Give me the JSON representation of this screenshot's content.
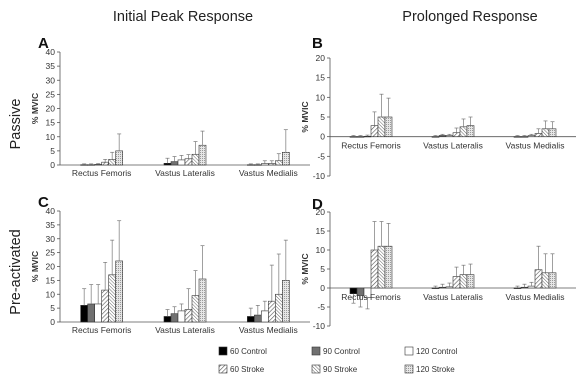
{
  "figure": {
    "col_titles": [
      "Initial Peak Response",
      "Prolonged Response"
    ],
    "row_titles": [
      "Passive",
      "Pre-activated"
    ]
  },
  "legend": [
    {
      "label": "60 Control",
      "series": 0
    },
    {
      "label": "90 Control",
      "series": 1
    },
    {
      "label": "120 Control",
      "series": 2
    },
    {
      "label": "60 Stroke",
      "series": 3
    },
    {
      "label": "90 Stroke",
      "series": 4
    },
    {
      "label": "120 Stroke",
      "series": 5
    }
  ],
  "series_styles": [
    {
      "fill": "#000000",
      "pattern": "solid"
    },
    {
      "fill": "#707070",
      "pattern": "solid"
    },
    {
      "fill": "#ffffff",
      "pattern": "solid"
    },
    {
      "fill": "#ffffff",
      "pattern": "diag"
    },
    {
      "fill": "#ffffff",
      "pattern": "diag-dense"
    },
    {
      "fill": "#d9d9d9",
      "pattern": "dots"
    }
  ],
  "chart_data": [
    {
      "panel": "A",
      "type": "bar",
      "ylabel": "% MVIC",
      "ylim": [
        0,
        40
      ],
      "yticks": [
        0,
        5,
        10,
        15,
        20,
        25,
        30,
        35,
        40
      ],
      "categories": [
        "Rectus Femoris",
        "Vastus Lateralis",
        "Vastus Medialis"
      ],
      "series": [
        {
          "name": "60 Control",
          "values": [
            0.1,
            0.6,
            0.1
          ],
          "errors": [
            0.3,
            1.8,
            0.3
          ]
        },
        {
          "name": "90 Control",
          "values": [
            0.1,
            1.2,
            0.1
          ],
          "errors": [
            0.3,
            1.8,
            0.3
          ]
        },
        {
          "name": "120 Control",
          "values": [
            0.2,
            1.8,
            0.5
          ],
          "errors": [
            0.3,
            1.6,
            1.0
          ]
        },
        {
          "name": "60 Stroke",
          "values": [
            1.0,
            2.2,
            0.5
          ],
          "errors": [
            1.0,
            1.5,
            1.0
          ]
        },
        {
          "name": "90 Stroke",
          "values": [
            2.0,
            3.8,
            1.5
          ],
          "errors": [
            2.5,
            4.5,
            2.5
          ]
        },
        {
          "name": "120 Stroke",
          "values": [
            5.0,
            7.0,
            4.5
          ],
          "errors": [
            6.0,
            5.0,
            8.0
          ]
        }
      ]
    },
    {
      "panel": "B",
      "type": "bar",
      "ylabel": "% MVIC",
      "ylim": [
        -10,
        20
      ],
      "yticks": [
        -10,
        -5,
        0,
        5,
        10,
        15,
        20
      ],
      "categories": [
        "Rectus Femoris",
        "Vastus Lateralis",
        "Vastus Medialis"
      ],
      "series": [
        {
          "name": "60 Control",
          "values": [
            0.0,
            0.0,
            0.0
          ],
          "errors": [
            0.3,
            0.3,
            0.3
          ]
        },
        {
          "name": "90 Control",
          "values": [
            0.0,
            0.3,
            0.0
          ],
          "errors": [
            0.3,
            0.3,
            0.3
          ]
        },
        {
          "name": "120 Control",
          "values": [
            0.1,
            0.3,
            0.3
          ],
          "errors": [
            0.3,
            0.3,
            0.3
          ]
        },
        {
          "name": "60 Stroke",
          "values": [
            2.8,
            1.0,
            0.8
          ],
          "errors": [
            3.5,
            1.2,
            1.2
          ]
        },
        {
          "name": "90 Stroke",
          "values": [
            5.0,
            2.5,
            2.0
          ],
          "errors": [
            5.8,
            2.0,
            2.0
          ]
        },
        {
          "name": "120 Stroke",
          "values": [
            5.0,
            2.8,
            2.0
          ],
          "errors": [
            4.8,
            2.2,
            1.8
          ]
        }
      ]
    },
    {
      "panel": "C",
      "type": "bar",
      "ylabel": "% MVIC",
      "ylim": [
        0,
        40
      ],
      "yticks": [
        0,
        5,
        10,
        15,
        20,
        25,
        30,
        35,
        40
      ],
      "categories": [
        "Rectus Femoris",
        "Vastus Lateralis",
        "Vastus Medialis"
      ],
      "series": [
        {
          "name": "60 Control",
          "values": [
            6.0,
            2.0,
            2.0
          ],
          "errors": [
            6.0,
            2.5,
            3.0
          ]
        },
        {
          "name": "90 Control",
          "values": [
            6.5,
            3.0,
            2.5
          ],
          "errors": [
            7.0,
            2.5,
            3.5
          ]
        },
        {
          "name": "120 Control",
          "values": [
            6.5,
            4.0,
            4.0
          ],
          "errors": [
            7.0,
            2.5,
            3.5
          ]
        },
        {
          "name": "60 Stroke",
          "values": [
            11.5,
            4.5,
            7.5
          ],
          "errors": [
            10.0,
            7.5,
            13.0
          ]
        },
        {
          "name": "90 Stroke",
          "values": [
            17.0,
            9.5,
            10.0
          ],
          "errors": [
            12.5,
            9.0,
            14.5
          ]
        },
        {
          "name": "120 Stroke",
          "values": [
            22.0,
            15.5,
            15.0
          ],
          "errors": [
            14.5,
            12.0,
            14.5
          ]
        }
      ]
    },
    {
      "panel": "D",
      "type": "bar",
      "ylabel": "% MVIC",
      "ylim": [
        -10,
        20
      ],
      "yticks": [
        -10,
        -5,
        0,
        5,
        10,
        15,
        20
      ],
      "categories": [
        "Rectus Femoris",
        "Vastus Lateralis",
        "Vastus Medialis"
      ],
      "series": [
        {
          "name": "60 Control",
          "values": [
            -1.5,
            0.0,
            0.0
          ],
          "errors": [
            2.5,
            0.5,
            0.5
          ]
        },
        {
          "name": "90 Control",
          "values": [
            -2.0,
            0.2,
            0.2
          ],
          "errors": [
            3.0,
            0.8,
            0.8
          ]
        },
        {
          "name": "120 Control",
          "values": [
            -2.5,
            0.3,
            0.5
          ],
          "errors": [
            3.0,
            1.0,
            1.0
          ]
        },
        {
          "name": "60 Stroke",
          "values": [
            10.0,
            3.0,
            4.8
          ],
          "errors": [
            7.5,
            2.5,
            6.2
          ]
        },
        {
          "name": "90 Stroke",
          "values": [
            11.0,
            3.5,
            4.0
          ],
          "errors": [
            6.5,
            2.5,
            5.0
          ]
        },
        {
          "name": "120 Stroke",
          "values": [
            11.0,
            3.5,
            4.0
          ],
          "errors": [
            6.0,
            2.8,
            5.0
          ]
        }
      ]
    }
  ]
}
